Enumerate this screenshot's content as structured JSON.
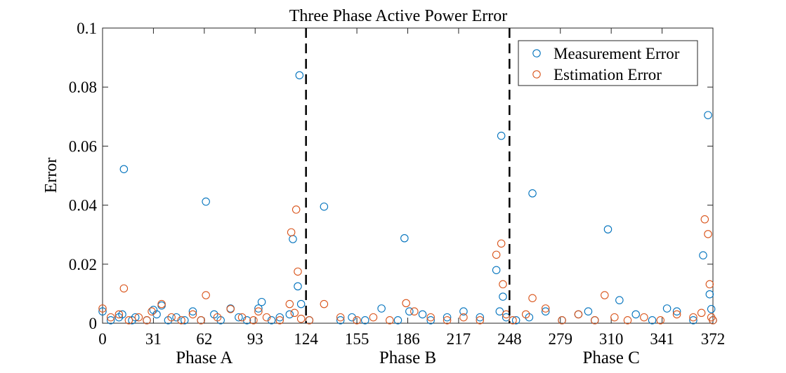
{
  "chart_data": {
    "type": "scatter",
    "title": "Three Phase Active Power Error",
    "xlabel": "",
    "ylabel": "Error",
    "xlim": [
      0,
      372
    ],
    "ylim": [
      0,
      0.1
    ],
    "xticks": [
      0,
      31,
      62,
      93,
      124,
      155,
      186,
      217,
      248,
      279,
      310,
      341,
      372
    ],
    "yticks": [
      0,
      0.02,
      0.04,
      0.06,
      0.08,
      0.1
    ],
    "ytick_labels": [
      "0",
      "0.02",
      "0.04",
      "0.06",
      "0.08",
      "0.1"
    ],
    "grid": false,
    "legend_position": "top-right",
    "phase_dividers": [
      124,
      248
    ],
    "phase_labels": [
      {
        "label": "Phase A",
        "x": 62
      },
      {
        "label": "Phase B",
        "x": 186
      },
      {
        "label": "Phase C",
        "x": 310
      }
    ],
    "series": [
      {
        "name": "Measurement Error",
        "color": "#0072BD",
        "points": [
          [
            0,
            0.004
          ],
          [
            5,
            0.001
          ],
          [
            10,
            0.002
          ],
          [
            12,
            0.003
          ],
          [
            13,
            0.0522
          ],
          [
            18,
            0.001
          ],
          [
            20,
            0.002
          ],
          [
            27,
            0.001
          ],
          [
            31,
            0.0045
          ],
          [
            33,
            0.003
          ],
          [
            36,
            0.006
          ],
          [
            40,
            0.001
          ],
          [
            45,
            0.002
          ],
          [
            50,
            0.001
          ],
          [
            55,
            0.004
          ],
          [
            60,
            0.001
          ],
          [
            63,
            0.0412
          ],
          [
            68,
            0.003
          ],
          [
            72,
            0.001
          ],
          [
            78,
            0.005
          ],
          [
            83,
            0.002
          ],
          [
            88,
            0.001
          ],
          [
            95,
            0.005
          ],
          [
            97,
            0.0072
          ],
          [
            103,
            0.001
          ],
          [
            108,
            0.002
          ],
          [
            114,
            0.003
          ],
          [
            116,
            0.0285
          ],
          [
            119,
            0.0125
          ],
          [
            120,
            0.084
          ],
          [
            121,
            0.0065
          ],
          [
            126,
            0.001
          ],
          [
            135,
            0.0395
          ],
          [
            145,
            0.001
          ],
          [
            152,
            0.002
          ],
          [
            160,
            0.001
          ],
          [
            170,
            0.005
          ],
          [
            180,
            0.001
          ],
          [
            184,
            0.0288
          ],
          [
            187,
            0.004
          ],
          [
            195,
            0.003
          ],
          [
            200,
            0.001
          ],
          [
            210,
            0.002
          ],
          [
            220,
            0.004
          ],
          [
            230,
            0.002
          ],
          [
            240,
            0.018
          ],
          [
            242,
            0.004
          ],
          [
            243,
            0.0635
          ],
          [
            244,
            0.009
          ],
          [
            246,
            0.002
          ],
          [
            252,
            0.001
          ],
          [
            260,
            0.002
          ],
          [
            262,
            0.044
          ],
          [
            270,
            0.004
          ],
          [
            280,
            0.001
          ],
          [
            290,
            0.003
          ],
          [
            296,
            0.004
          ],
          [
            300,
            0.001
          ],
          [
            308,
            0.0318
          ],
          [
            315,
            0.0078
          ],
          [
            325,
            0.003
          ],
          [
            335,
            0.001
          ],
          [
            344,
            0.005
          ],
          [
            350,
            0.004
          ],
          [
            360,
            0.001
          ],
          [
            366,
            0.023
          ],
          [
            369,
            0.0705
          ],
          [
            370,
            0.0098
          ],
          [
            371,
            0.0048
          ],
          [
            372,
            0.001
          ]
        ]
      },
      {
        "name": "Estimation Error",
        "color": "#D95319",
        "points": [
          [
            0,
            0.005
          ],
          [
            5,
            0.002
          ],
          [
            10,
            0.003
          ],
          [
            13,
            0.0118
          ],
          [
            16,
            0.001
          ],
          [
            22,
            0.002
          ],
          [
            27,
            0.001
          ],
          [
            30,
            0.004
          ],
          [
            36,
            0.0065
          ],
          [
            42,
            0.002
          ],
          [
            48,
            0.001
          ],
          [
            55,
            0.003
          ],
          [
            60,
            0.001
          ],
          [
            63,
            0.0095
          ],
          [
            70,
            0.002
          ],
          [
            78,
            0.0048
          ],
          [
            85,
            0.002
          ],
          [
            92,
            0.001
          ],
          [
            95,
            0.004
          ],
          [
            100,
            0.002
          ],
          [
            108,
            0.001
          ],
          [
            114,
            0.0065
          ],
          [
            115,
            0.0308
          ],
          [
            117,
            0.0035
          ],
          [
            118,
            0.0385
          ],
          [
            119,
            0.0175
          ],
          [
            121,
            0.0015
          ],
          [
            126,
            0.001
          ],
          [
            135,
            0.0065
          ],
          [
            145,
            0.002
          ],
          [
            155,
            0.001
          ],
          [
            165,
            0.002
          ],
          [
            175,
            0.001
          ],
          [
            185,
            0.0068
          ],
          [
            190,
            0.004
          ],
          [
            200,
            0.002
          ],
          [
            210,
            0.001
          ],
          [
            220,
            0.002
          ],
          [
            230,
            0.001
          ],
          [
            240,
            0.0232
          ],
          [
            243,
            0.027
          ],
          [
            244,
            0.0132
          ],
          [
            246,
            0.003
          ],
          [
            250,
            0.001
          ],
          [
            258,
            0.003
          ],
          [
            262,
            0.0085
          ],
          [
            270,
            0.005
          ],
          [
            280,
            0.001
          ],
          [
            290,
            0.003
          ],
          [
            300,
            0.001
          ],
          [
            306,
            0.0095
          ],
          [
            312,
            0.002
          ],
          [
            320,
            0.001
          ],
          [
            330,
            0.002
          ],
          [
            340,
            0.001
          ],
          [
            350,
            0.003
          ],
          [
            360,
            0.002
          ],
          [
            365,
            0.0035
          ],
          [
            367,
            0.0352
          ],
          [
            369,
            0.0302
          ],
          [
            370,
            0.0132
          ],
          [
            371,
            0.002
          ],
          [
            372,
            0.001
          ]
        ]
      }
    ]
  }
}
